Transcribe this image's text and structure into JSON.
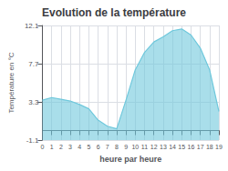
{
  "chart_data": {
    "type": "area",
    "title": "Evolution de la température",
    "xlabel": "heure par heure",
    "ylabel": "Température en °C",
    "x": [
      0,
      1,
      2,
      3,
      4,
      5,
      6,
      7,
      8,
      9,
      10,
      11,
      12,
      13,
      14,
      15,
      16,
      17,
      18,
      19
    ],
    "values": [
      3.5,
      3.8,
      3.6,
      3.4,
      3.0,
      2.5,
      1.2,
      0.5,
      0.2,
      3.5,
      7.0,
      9.0,
      10.2,
      10.8,
      11.5,
      11.7,
      11.0,
      9.5,
      7.0,
      2.2
    ],
    "xlim": [
      0,
      19
    ],
    "ylim": [
      -1.1,
      12.1
    ],
    "xticks": [
      0,
      1,
      2,
      3,
      4,
      5,
      6,
      7,
      8,
      9,
      10,
      11,
      12,
      13,
      14,
      15,
      16,
      17,
      18,
      19
    ],
    "yticks": [
      -1.1,
      3.3,
      7.7,
      12.1
    ],
    "color": "#6fc8dc",
    "grid": true
  }
}
